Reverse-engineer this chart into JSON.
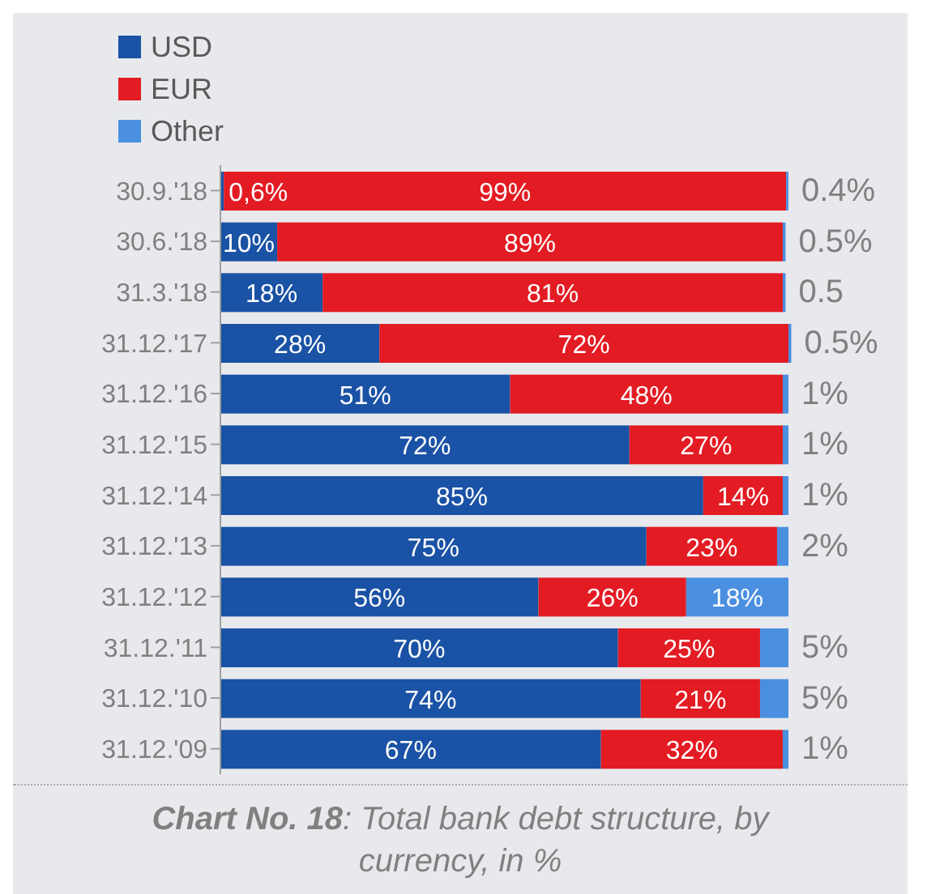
{
  "chart_data": {
    "type": "bar",
    "orientation": "horizontal",
    "stacked": true,
    "title": "Chart No. 18: Total bank debt structure, by currency, in %",
    "categories": [
      "30.9.'18",
      "30.6.'18",
      "31.3.'18",
      "31.12.'17",
      "31.12.'16",
      "31.12.'15",
      "31.12.'14",
      "31.12.'13",
      "31.12.'12",
      "31.12.'11",
      "31.12.'10",
      "31.12.'09"
    ],
    "series": [
      {
        "name": "USD",
        "color": "#1a52a5",
        "values": [
          0.6,
          10,
          18,
          28,
          51,
          72,
          85,
          75,
          56,
          70,
          74,
          67
        ],
        "value_labels": [
          "0,6%",
          "10%",
          "18%",
          "28%",
          "51%",
          "72%",
          "85%",
          "75%",
          "56%",
          "70%",
          "74%",
          "67%"
        ]
      },
      {
        "name": "EUR",
        "color": "#e31b23",
        "values": [
          99,
          89,
          81,
          72,
          48,
          27,
          14,
          23,
          26,
          25,
          21,
          32
        ],
        "value_labels": [
          "99%",
          "89%",
          "81%",
          "72%",
          "48%",
          "27%",
          "14%",
          "23%",
          "26%",
          "25%",
          "21%",
          "32%"
        ]
      },
      {
        "name": "Other",
        "color": "#4a8fe0",
        "values": [
          0.4,
          0.5,
          0.5,
          0.5,
          1,
          1,
          1,
          2,
          18,
          5,
          5,
          1
        ],
        "value_labels": [
          "0.4%",
          "0.5%",
          "0.5",
          "0.5%",
          "1%",
          "1%",
          "1%",
          "2%",
          "18%",
          "5%",
          "5%",
          "1%"
        ]
      }
    ],
    "xlim": [
      0,
      101
    ],
    "tick_labels": "y",
    "legend": "top left",
    "grid": false
  }
}
